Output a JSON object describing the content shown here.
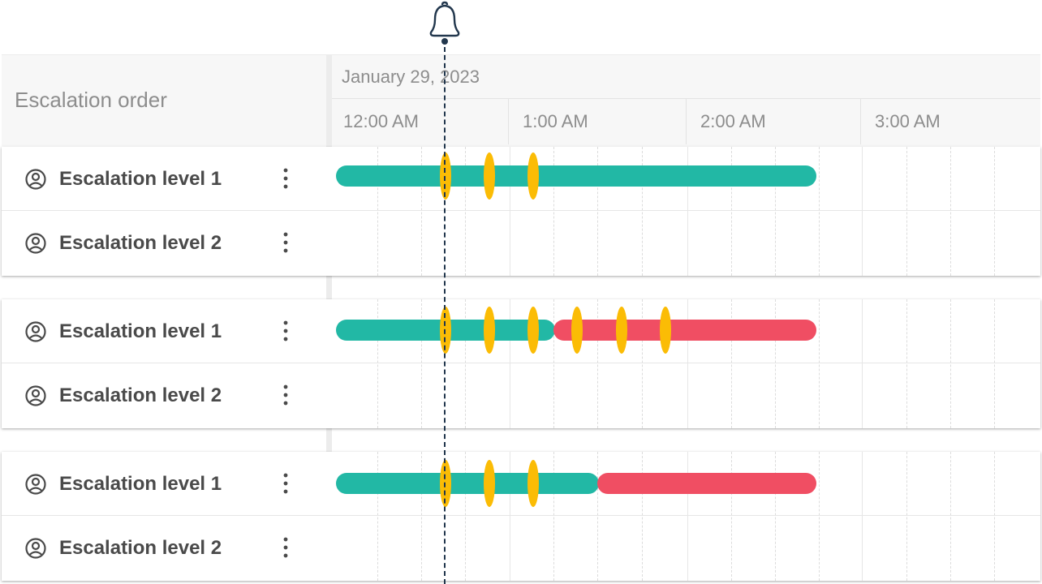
{
  "header": {
    "column_title": "Escalation order",
    "date": "January 29, 2023",
    "ticks": [
      "12:00 AM",
      "1:00 AM",
      "2:00 AM",
      "3:00 AM"
    ]
  },
  "groups": [
    {
      "rows": [
        {
          "label": "Escalation level 1"
        },
        {
          "label": "Escalation level 2"
        }
      ]
    },
    {
      "rows": [
        {
          "label": "Escalation level 1"
        },
        {
          "label": "Escalation level 2"
        }
      ]
    },
    {
      "rows": [
        {
          "label": "Escalation level 1"
        },
        {
          "label": "Escalation level 2"
        }
      ]
    }
  ],
  "icons": {
    "user": "user-circle-icon",
    "menu": "kebab-menu-icon",
    "alert": "bell-icon"
  },
  "colors": {
    "on_call_active": "#22b8a5",
    "on_call_escalated": "#f04e63",
    "notification": "#fbbc05",
    "current_time_marker": "#22374d"
  }
}
